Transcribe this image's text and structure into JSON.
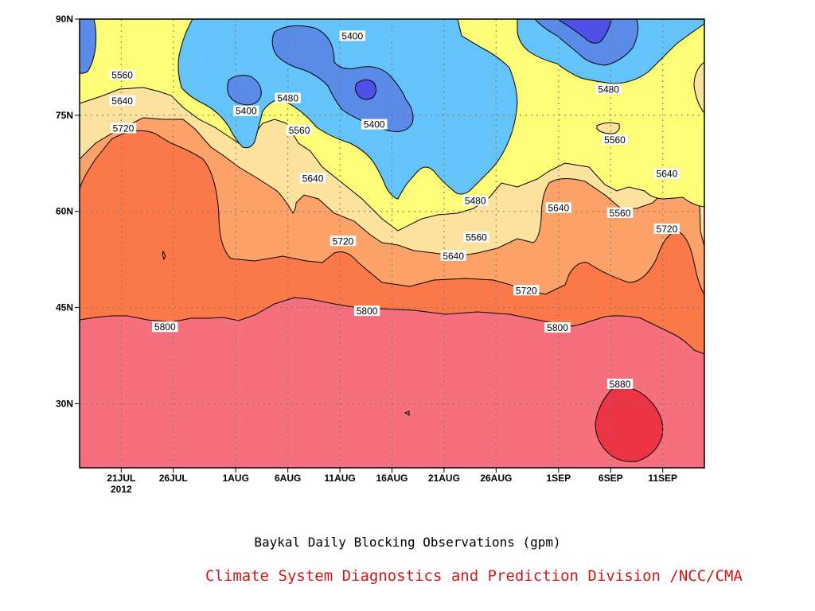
{
  "chart_data": {
    "type": "contour",
    "title": "Baykal Daily Blocking Observations (gpm)",
    "credit": "Climate System Diagnostics and Prediction Division /NCC/CMA",
    "x_ticks": [
      {
        "day": 12,
        "label": "21JUL",
        "sublabel": "2012"
      },
      {
        "day": 17,
        "label": "26JUL"
      },
      {
        "day": 23,
        "label": "1AUG"
      },
      {
        "day": 28,
        "label": "6AUG"
      },
      {
        "day": 33,
        "label": "11AUG"
      },
      {
        "day": 38,
        "label": "16AUG"
      },
      {
        "day": 43,
        "label": "21AUG"
      },
      {
        "day": 48,
        "label": "26AUG"
      },
      {
        "day": 54,
        "label": "1SEP"
      },
      {
        "day": 59,
        "label": "6SEP"
      },
      {
        "day": 64,
        "label": "11SEP"
      }
    ],
    "xlim_day": [
      8,
      68
    ],
    "y_ticks": [
      {
        "lat": 90,
        "label": "90N"
      },
      {
        "lat": 75,
        "label": "75N"
      },
      {
        "lat": 60,
        "label": "60N"
      },
      {
        "lat": 45,
        "label": "45N"
      },
      {
        "lat": 30,
        "label": "30N"
      }
    ],
    "ylim_lat": [
      20,
      90
    ],
    "levels": [
      5400,
      5480,
      5560,
      5640,
      5720,
      5800,
      5880
    ],
    "fill_colors": {
      "below_5400": "#5a8be8",
      "5400_5480": "#64c4fa",
      "5480_5560": "#fdfd78",
      "5560_5640": "#fde29e",
      "5640_5720": "#fca268",
      "5720_5800": "#fb7848",
      "5800_5880": "#f5707c",
      "above_5880": "#ec3444",
      "deep_low": "#4e50e8"
    },
    "contour_labels": [
      {
        "value": "5560",
        "day": 12.1,
        "lat": 81.3
      },
      {
        "value": "5640",
        "day": 12.1,
        "lat": 77.3
      },
      {
        "value": "5720",
        "day": 12.2,
        "lat": 73.0
      },
      {
        "value": "5800",
        "day": 16.2,
        "lat": 42.0
      },
      {
        "value": "5400",
        "day": 24.0,
        "lat": 75.7
      },
      {
        "value": "5480",
        "day": 28.0,
        "lat": 77.7
      },
      {
        "value": "5560",
        "day": 29.1,
        "lat": 72.7
      },
      {
        "value": "5640",
        "day": 30.4,
        "lat": 65.2
      },
      {
        "value": "5720",
        "day": 33.3,
        "lat": 55.4
      },
      {
        "value": "5800",
        "day": 35.6,
        "lat": 44.5
      },
      {
        "value": "5400",
        "day": 34.2,
        "lat": 87.4
      },
      {
        "value": "5400",
        "day": 36.3,
        "lat": 73.6
      },
      {
        "value": "5640",
        "day": 43.9,
        "lat": 53.1
      },
      {
        "value": "5560",
        "day": 46.1,
        "lat": 56.0
      },
      {
        "value": "5480",
        "day": 46.0,
        "lat": 61.7
      },
      {
        "value": "5640",
        "day": 54.0,
        "lat": 60.6
      },
      {
        "value": "5720",
        "day": 50.9,
        "lat": 47.7
      },
      {
        "value": "5800",
        "day": 53.9,
        "lat": 41.9
      },
      {
        "value": "5480",
        "day": 58.8,
        "lat": 79.1
      },
      {
        "value": "5560",
        "day": 59.4,
        "lat": 71.2
      },
      {
        "value": "5560",
        "day": 59.9,
        "lat": 59.8
      },
      {
        "value": "5640",
        "day": 64.4,
        "lat": 65.9
      },
      {
        "value": "5720",
        "day": 64.4,
        "lat": 57.3
      },
      {
        "value": "5880",
        "day": 59.9,
        "lat": 33.1
      }
    ]
  }
}
